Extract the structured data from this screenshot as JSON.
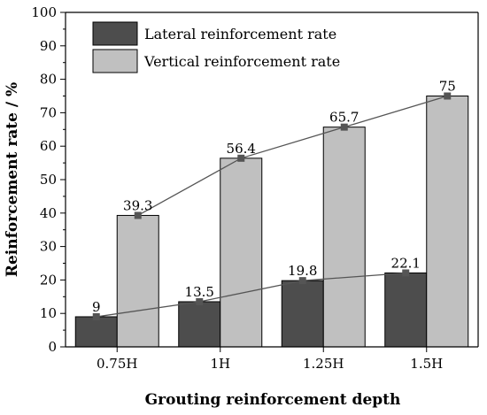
{
  "chart_data": {
    "type": "bar",
    "xlabel": "Grouting reinforcement depth",
    "ylabel": "Reinforcement rate / %",
    "categories": [
      "0.75H",
      "1H",
      "1.25H",
      "1.5H"
    ],
    "ylim": [
      0,
      100
    ],
    "yticks": [
      0,
      10,
      20,
      30,
      40,
      50,
      60,
      70,
      80,
      90,
      100
    ],
    "legend_position": "top-left",
    "grid": false,
    "series": [
      {
        "name": "Lateral reinforcement rate",
        "values": [
          9,
          13.5,
          19.8,
          22.1
        ],
        "labels": [
          "9",
          "13.5",
          "19.8",
          "22.1"
        ],
        "color": "#4d4d4d"
      },
      {
        "name": "Vertical reinforcement rate",
        "values": [
          39.3,
          56.4,
          65.7,
          75
        ],
        "labels": [
          "39.3",
          "56.4",
          "65.7",
          "75"
        ],
        "color": "#c0c0c0"
      }
    ],
    "line_overlay": true,
    "line_color": "#555555",
    "marker_color": "#555555"
  }
}
